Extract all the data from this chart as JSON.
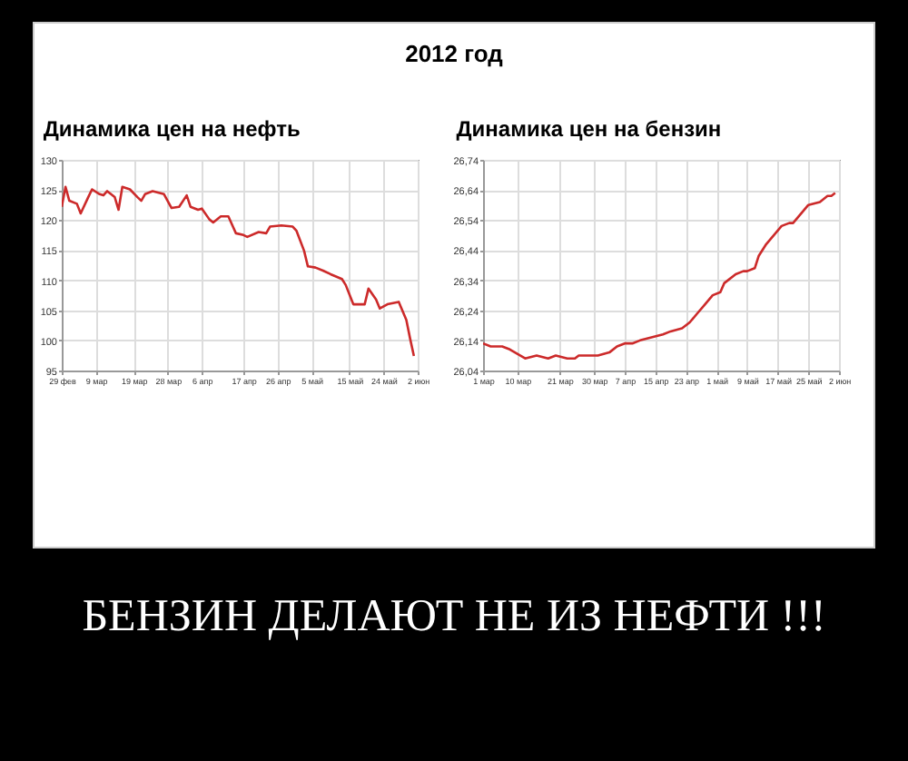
{
  "chart_data": [
    {
      "type": "line",
      "title": "Динамика цен на нефть",
      "annotations": [
        "2012 год",
        "БЕНЗИН ДЕЛАЮТ НЕ ИЗ НЕФТИ !!!"
      ],
      "x": [
        "2012-02-29",
        "2012-03-01",
        "2012-03-02",
        "2012-03-04",
        "2012-03-05",
        "2012-03-07",
        "2012-03-08",
        "2012-03-10",
        "2012-03-11",
        "2012-03-12",
        "2012-03-14",
        "2012-03-15",
        "2012-03-16",
        "2012-03-18",
        "2012-03-20",
        "2012-03-21",
        "2012-03-22",
        "2012-03-24",
        "2012-03-27",
        "2012-03-29",
        "2012-03-31",
        "2012-04-02",
        "2012-04-03",
        "2012-04-05",
        "2012-04-06",
        "2012-04-08",
        "2012-04-09",
        "2012-04-11",
        "2012-04-13",
        "2012-04-15",
        "2012-04-17",
        "2012-04-18",
        "2012-04-21",
        "2012-04-23",
        "2012-04-24",
        "2012-04-27",
        "2012-04-30",
        "2012-05-01",
        "2012-05-03",
        "2012-05-04",
        "2012-05-06",
        "2012-05-08",
        "2012-05-10",
        "2012-05-13",
        "2012-05-14",
        "2012-05-16",
        "2012-05-19",
        "2012-05-20",
        "2012-05-22",
        "2012-05-23",
        "2012-05-25",
        "2012-05-28",
        "2012-05-30",
        "2012-05-31",
        "2012-06-01"
      ],
      "series": [
        {
          "color": "#cc2a2a",
          "values": [
            122.2,
            125.5,
            123.2,
            122.7,
            121.1,
            123.8,
            125.1,
            124.3,
            124.1,
            124.8,
            123.8,
            121.7,
            125.5,
            125.1,
            123.8,
            123.2,
            124.3,
            124.8,
            124.3,
            122,
            122.2,
            124.1,
            122.2,
            121.7,
            121.9,
            120.1,
            119.6,
            120.6,
            120.6,
            117.8,
            117.5,
            117.2,
            118,
            117.8,
            118.9,
            119.1,
            118.9,
            118.2,
            114.9,
            112.3,
            112.1,
            111.6,
            111,
            110.2,
            109.2,
            106,
            106,
            108.6,
            106.8,
            105.3,
            106,
            106.4,
            103.4,
            100.3,
            97.4
          ]
        }
      ],
      "xlim": [
        "2012-02-29",
        "2012-06-02"
      ],
      "xticks": [
        {
          "value": "2012-02-29",
          "label": "29 фев"
        },
        {
          "value": "2012-03-09",
          "label": "9 мар"
        },
        {
          "value": "2012-03-19",
          "label": "19 мар"
        },
        {
          "value": "2012-03-28",
          "label": "28 мар"
        },
        {
          "value": "2012-04-06",
          "label": "6 апр"
        },
        {
          "value": "2012-04-17",
          "label": "17 апр"
        },
        {
          "value": "2012-04-26",
          "label": "26 апр"
        },
        {
          "value": "2012-05-05",
          "label": "5 май"
        },
        {
          "value": "2012-05-15",
          "label": "15 май"
        },
        {
          "value": "2012-05-24",
          "label": "24 май"
        },
        {
          "value": "2012-06-02",
          "label": "2 июн"
        }
      ],
      "ylim": [
        95,
        130
      ],
      "yticks": [
        95,
        100,
        105,
        110,
        115,
        120,
        125,
        130
      ],
      "grid": true
    },
    {
      "type": "line",
      "title": "Динамика цен на бензин",
      "x": [
        "2012-03-01",
        "2012-03-03",
        "2012-03-06",
        "2012-03-08",
        "2012-03-12",
        "2012-03-15",
        "2012-03-18",
        "2012-03-20",
        "2012-03-23",
        "2012-03-25",
        "2012-03-26",
        "2012-03-28",
        "2012-03-31",
        "2012-04-03",
        "2012-04-05",
        "2012-04-07",
        "2012-04-09",
        "2012-04-11",
        "2012-04-14",
        "2012-04-17",
        "2012-04-19",
        "2012-04-22",
        "2012-04-24",
        "2012-04-26",
        "2012-04-28",
        "2012-04-30",
        "2012-05-02",
        "2012-05-03",
        "2012-05-06",
        "2012-05-08",
        "2012-05-09",
        "2012-05-11",
        "2012-05-12",
        "2012-05-14",
        "2012-05-16",
        "2012-05-18",
        "2012-05-20",
        "2012-05-21",
        "2012-05-23",
        "2012-05-25",
        "2012-05-28",
        "2012-05-30",
        "2012-05-31",
        "2012-06-01"
      ],
      "series": [
        {
          "color": "#cc2a2a",
          "values": [
            26.13,
            26.12,
            26.12,
            26.11,
            26.08,
            26.09,
            26.08,
            26.09,
            26.08,
            26.08,
            26.09,
            26.09,
            26.09,
            26.1,
            26.12,
            26.13,
            26.13,
            26.14,
            26.15,
            26.16,
            26.17,
            26.18,
            26.2,
            26.23,
            26.26,
            26.29,
            26.3,
            26.33,
            26.36,
            26.37,
            26.37,
            26.38,
            26.42,
            26.46,
            26.49,
            26.52,
            26.53,
            26.53,
            26.56,
            26.59,
            26.6,
            26.62,
            26.62,
            26.63
          ]
        }
      ],
      "xlim": [
        "2012-03-01",
        "2012-06-02"
      ],
      "xticks": [
        {
          "value": "2012-03-01",
          "label": "1 мар"
        },
        {
          "value": "2012-03-10",
          "label": "10 мар"
        },
        {
          "value": "2012-03-21",
          "label": "21 мар"
        },
        {
          "value": "2012-03-30",
          "label": "30 мар"
        },
        {
          "value": "2012-04-07",
          "label": "7 апр"
        },
        {
          "value": "2012-04-15",
          "label": "15 апр"
        },
        {
          "value": "2012-04-23",
          "label": "23 апр"
        },
        {
          "value": "2012-05-01",
          "label": "1 май"
        },
        {
          "value": "2012-05-09",
          "label": "9 май"
        },
        {
          "value": "2012-05-17",
          "label": "17 май"
        },
        {
          "value": "2012-05-25",
          "label": "25 май"
        },
        {
          "value": "2012-06-02",
          "label": "2 июн"
        }
      ],
      "ylim": [
        26.04,
        26.74
      ],
      "yticks": [
        {
          "value": 26.04,
          "label": "26,04"
        },
        {
          "value": 26.14,
          "label": "26,14"
        },
        {
          "value": 26.24,
          "label": "26,24"
        },
        {
          "value": 26.34,
          "label": "26,34"
        },
        {
          "value": 26.44,
          "label": "26,44"
        },
        {
          "value": 26.54,
          "label": "26,54"
        },
        {
          "value": 26.64,
          "label": "26,64"
        },
        {
          "value": 26.74,
          "label": "26,74"
        }
      ],
      "grid": true
    }
  ]
}
